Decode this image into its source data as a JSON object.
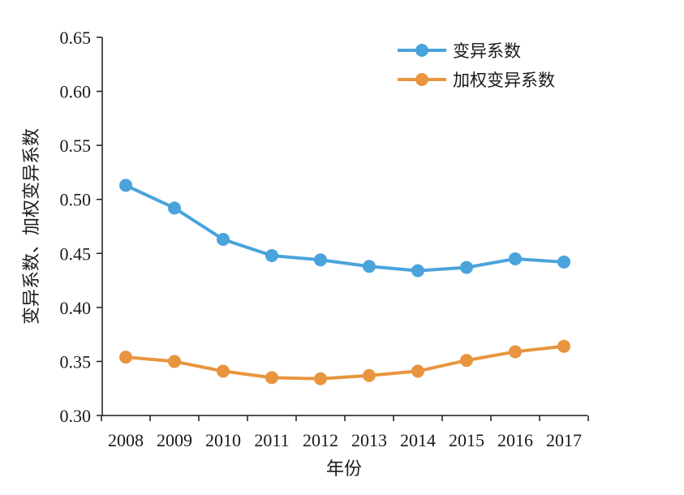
{
  "chart_data": {
    "type": "line",
    "categories": [
      "2008",
      "2009",
      "2010",
      "2011",
      "2012",
      "2013",
      "2014",
      "2015",
      "2016",
      "2017"
    ],
    "series": [
      {
        "name": "变异系数",
        "color": "#4aa3db",
        "values": [
          0.513,
          0.492,
          0.463,
          0.448,
          0.444,
          0.438,
          0.434,
          0.437,
          0.445,
          0.442
        ]
      },
      {
        "name": "加权变异系数",
        "color": "#e8953f",
        "values": [
          0.354,
          0.35,
          0.341,
          0.335,
          0.334,
          0.337,
          0.341,
          0.351,
          0.359,
          0.364
        ]
      }
    ],
    "xlabel": "年份",
    "ylabel": "变异系数、加权变异系数",
    "ylim": [
      0.3,
      0.65
    ],
    "yticks": [
      "0.30",
      "0.35",
      "0.40",
      "0.45",
      "0.50",
      "0.55",
      "0.60",
      "0.65"
    ],
    "grid": false,
    "legend_position": "top-right"
  }
}
